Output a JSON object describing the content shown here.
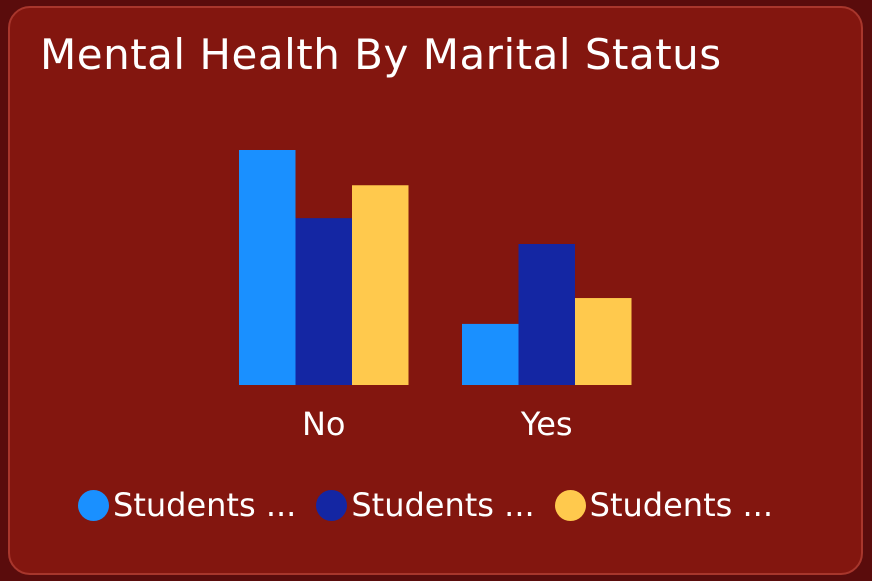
{
  "chart_data": {
    "type": "bar",
    "title": "Mental Health By Marital Status",
    "xlabel": "",
    "ylabel": "",
    "categories": [
      "No",
      "Yes"
    ],
    "series": [
      {
        "name": "Students ...",
        "values": [
          100,
          26
        ],
        "color": "#1a90ff"
      },
      {
        "name": "Students ...",
        "values": [
          71,
          60
        ],
        "color": "#1426a3"
      },
      {
        "name": "Students ...",
        "values": [
          85,
          37
        ],
        "color": "#ffc94d"
      }
    ],
    "ylim": [
      0,
      100
    ],
    "grid": false,
    "legend_position": "bottom"
  },
  "colors": {
    "background": "#5a0c0c",
    "card": "#83160f",
    "text": "#ffffff"
  }
}
